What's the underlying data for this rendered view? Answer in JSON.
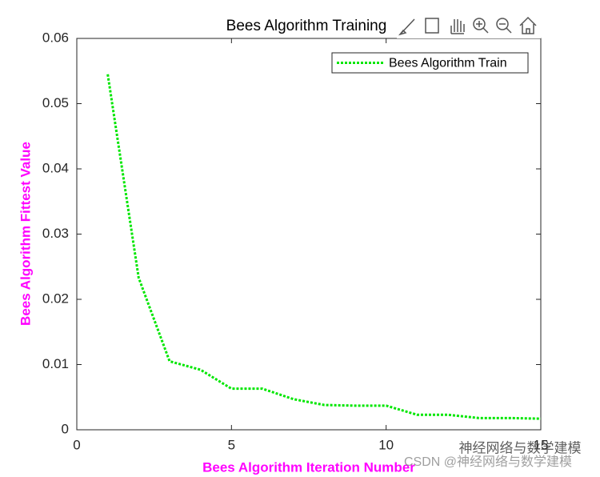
{
  "chart_data": {
    "type": "line",
    "title": "Bees Algorithm Training",
    "xlabel": "Bees Algorithm Iteration Number",
    "ylabel": "Bees Algorithm Fittest Value",
    "x": [
      1,
      2,
      3,
      4,
      5,
      6,
      7,
      8,
      9,
      10,
      11,
      12,
      13,
      14,
      15
    ],
    "series": [
      {
        "name": "Bees Algorithm Train",
        "color": "#00e600",
        "values": [
          0.0545,
          0.0233,
          0.0105,
          0.0092,
          0.0063,
          0.0063,
          0.0047,
          0.0038,
          0.0037,
          0.0037,
          0.0023,
          0.0023,
          0.0018,
          0.0018,
          0.0017
        ]
      }
    ],
    "xlim": [
      0,
      15
    ],
    "xticks": [
      0,
      5,
      10,
      15
    ],
    "ylim": [
      0,
      0.06
    ],
    "yticks": [
      0,
      0.01,
      0.02,
      0.03,
      0.04,
      0.05,
      0.06
    ],
    "grid": false,
    "legend": "top-right",
    "annotations": [
      "神经网络与数学建模",
      "CSDN @神经网络与数学建模"
    ]
  }
}
